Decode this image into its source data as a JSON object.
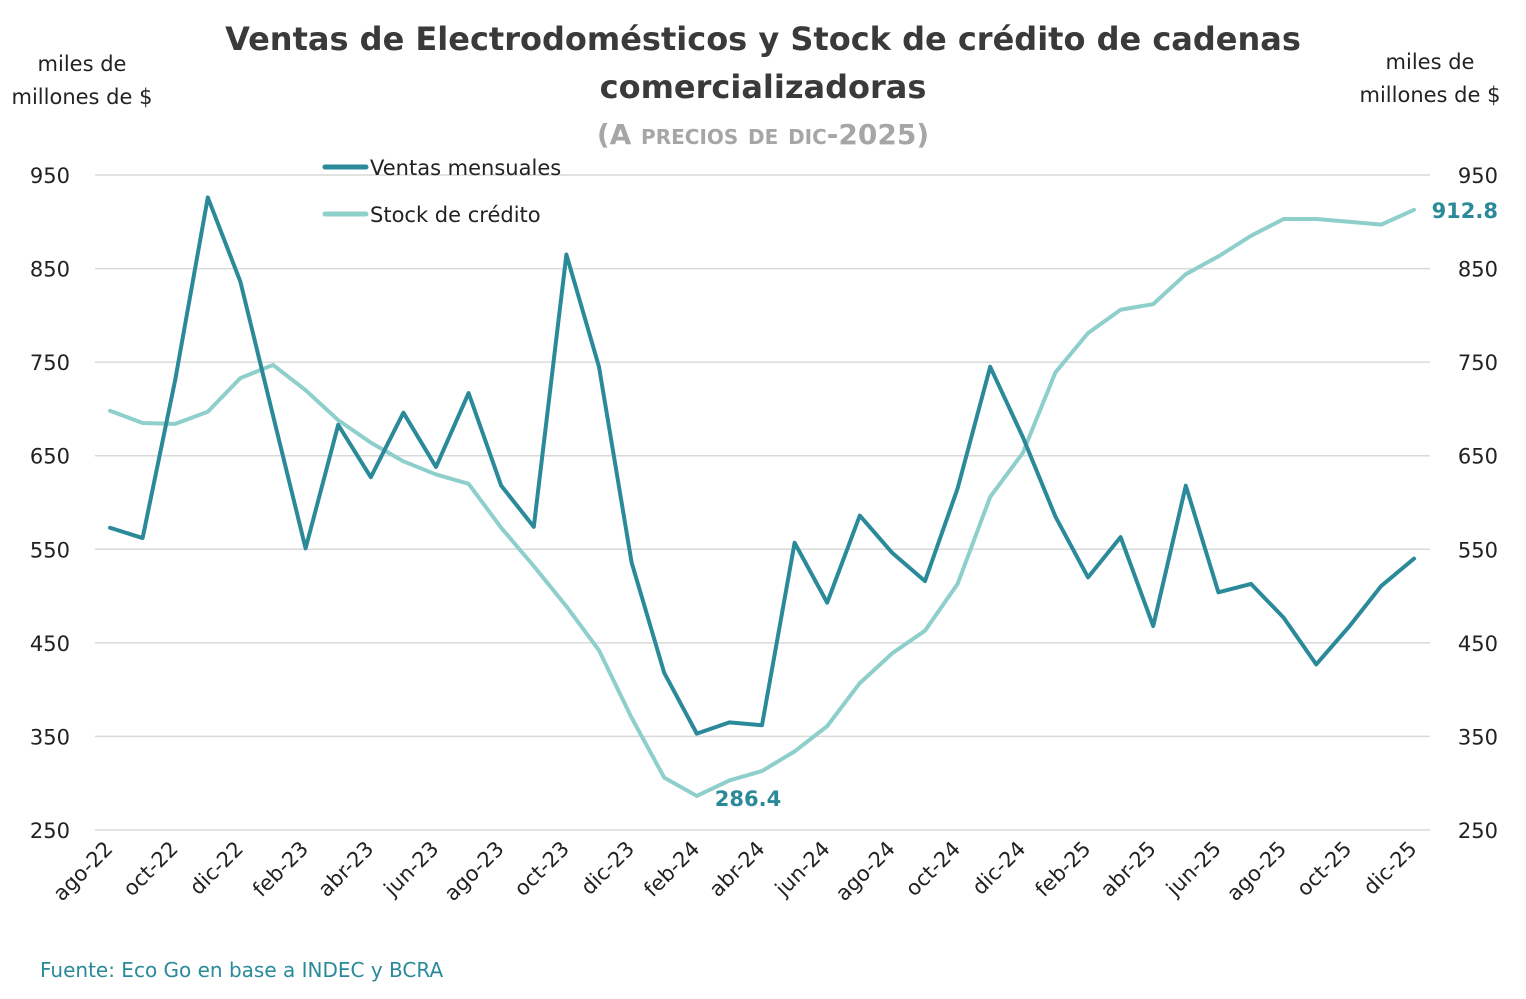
{
  "chart_data": {
    "type": "line",
    "title_line1": "Ventas de Electrodomésticos y Stock de crédito de cadenas",
    "title_line2": "comercializadoras",
    "subtitle": "(A precios de dic-2025)",
    "ylabel_left": "miles de millones de $",
    "ylabel_right": "miles de millones de $",
    "ylim": [
      250,
      950
    ],
    "yticks": [
      250,
      350,
      450,
      550,
      650,
      750,
      850,
      950
    ],
    "grid": true,
    "legend_position": "top-left",
    "x": [
      "ago-22",
      "sep-22",
      "oct-22",
      "nov-22",
      "dic-22",
      "ene-23",
      "feb-23",
      "mar-23",
      "abr-23",
      "may-23",
      "jun-23",
      "jul-23",
      "ago-23",
      "sep-23",
      "oct-23",
      "nov-23",
      "dic-23",
      "ene-24",
      "feb-24",
      "mar-24",
      "abr-24",
      "may-24",
      "jun-24",
      "jul-24",
      "ago-24",
      "sep-24",
      "oct-24",
      "nov-24",
      "dic-24",
      "ene-25",
      "feb-25",
      "mar-25",
      "abr-25",
      "may-25",
      "jun-25",
      "jul-25",
      "ago-25",
      "sep-25",
      "oct-25",
      "nov-25",
      "dic-25"
    ],
    "xtick_labels": [
      "ago-22",
      "oct-22",
      "dic-22",
      "feb-23",
      "abr-23",
      "jun-23",
      "ago-23",
      "oct-23",
      "dic-23",
      "feb-24",
      "abr-24",
      "jun-24",
      "ago-24",
      "oct-24",
      "dic-24",
      "feb-25",
      "abr-25",
      "jun-25",
      "ago-25",
      "oct-25",
      "dic-25"
    ],
    "series": [
      {
        "name": "Ventas mensuales",
        "color": "#2a8a9a",
        "values": [
          573,
          562,
          731,
          926,
          836,
          693,
          551,
          683,
          627,
          696,
          638,
          717,
          618,
          574,
          865,
          745,
          536,
          418,
          353,
          365,
          362,
          557,
          493,
          586,
          546,
          516,
          615,
          745,
          670,
          585,
          520,
          563,
          468,
          618,
          504,
          513,
          477,
          427,
          467,
          511,
          540
        ]
      },
      {
        "name": "Stock de crédito",
        "color": "#8ecfcb",
        "values": [
          698,
          685,
          684,
          697,
          733,
          747,
          720,
          688,
          664,
          644,
          630,
          620,
          573,
          532,
          489,
          442,
          370,
          306,
          286.4,
          303,
          313,
          334,
          361,
          407,
          439,
          463,
          513,
          606,
          653,
          739,
          781,
          806,
          812,
          844,
          863,
          885,
          903,
          903,
          900,
          897,
          912.8
        ]
      }
    ],
    "annotations": [
      {
        "text": "286.4",
        "x": "feb-24",
        "series": "Stock de crédito"
      },
      {
        "text": "912.8",
        "x": "dic-25",
        "series": "Stock de crédito"
      }
    ]
  },
  "source": "Fuente: Eco Go en base a INDEC y BCRA"
}
